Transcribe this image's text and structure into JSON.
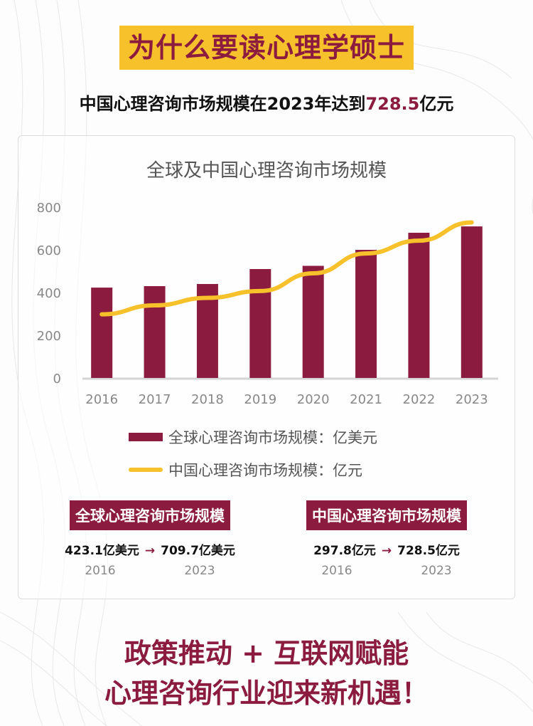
{
  "header": {
    "title": "为什么要读心理学硕士",
    "subtitle_prefix": "中国心理咨询市场规模在2023年达到",
    "subtitle_highlight": "728.5",
    "subtitle_suffix": "亿元"
  },
  "colors": {
    "accent": "#8b1c3f",
    "highlight": "#f7c12b"
  },
  "chart_data": {
    "type": "bar",
    "title": "全球及中国心理咨询市场规模",
    "categories": [
      "2016",
      "2017",
      "2018",
      "2019",
      "2020",
      "2021",
      "2022",
      "2023"
    ],
    "ylim": [
      0,
      800
    ],
    "yticks": [
      "0",
      "200",
      "400",
      "600",
      "800"
    ],
    "grid": false,
    "series": [
      {
        "name": "全球心理咨询市场规模：亿美元",
        "type": "bar",
        "color": "#8b1c3f",
        "values": [
          423.1,
          430,
          440,
          510,
          525,
          600,
          680,
          709.7
        ]
      },
      {
        "name": "中国心理咨询市场规模：亿元",
        "type": "line",
        "color": "#f7c12b",
        "values": [
          297.8,
          340,
          375,
          407,
          490,
          583,
          643,
          728.5
        ]
      }
    ],
    "legend_position": "bottom"
  },
  "stats": [
    {
      "heading": "全球心理咨询市场规模",
      "from_value": "423.1亿美元",
      "arrow": "→",
      "to_value": "709.7亿美元",
      "from_year": "2016",
      "to_year": "2023"
    },
    {
      "heading": "中国心理咨询市场规模",
      "from_value": "297.8亿元",
      "arrow": "→",
      "to_value": "728.5亿元",
      "from_year": "2016",
      "to_year": "2023"
    }
  ],
  "footer": {
    "line1": "政策推动 + 互联网赋能",
    "line2": "心理咨询行业迎来新机遇！"
  }
}
